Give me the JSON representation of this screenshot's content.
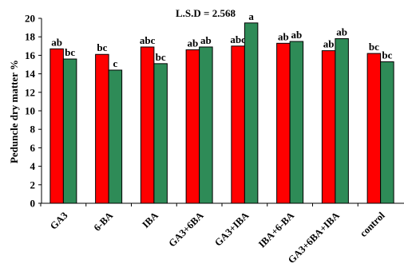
{
  "chart_data": {
    "type": "bar",
    "title": "",
    "annotation": "L.S.D = 2.568",
    "xlabel": "",
    "ylabel": "Peduncle dry matter %",
    "ylim": [
      0,
      20
    ],
    "yticks": [
      0,
      2,
      4,
      6,
      8,
      10,
      12,
      14,
      16,
      18,
      20
    ],
    "grid": false,
    "categories": [
      "GA3",
      "6-BA",
      "IBA",
      "GA3+6BA",
      "GA3+IBA",
      "IBA+6-BA",
      "GA3+6BA+IBA",
      "control"
    ],
    "series": [
      {
        "color": "#ff0000",
        "values": [
          16.7,
          16.1,
          16.9,
          16.6,
          17.0,
          17.3,
          16.5,
          16.2
        ],
        "labels": [
          "ab",
          "bc",
          "abc",
          "ab",
          "abc",
          "ab",
          "ab",
          "bc"
        ]
      },
      {
        "color": "#2e8b57",
        "values": [
          15.6,
          14.4,
          15.1,
          16.9,
          19.5,
          17.5,
          17.8,
          15.3
        ],
        "labels": [
          "bc",
          "c",
          "bc",
          "ab",
          "a",
          "ab",
          "ab",
          "bc"
        ]
      }
    ]
  }
}
